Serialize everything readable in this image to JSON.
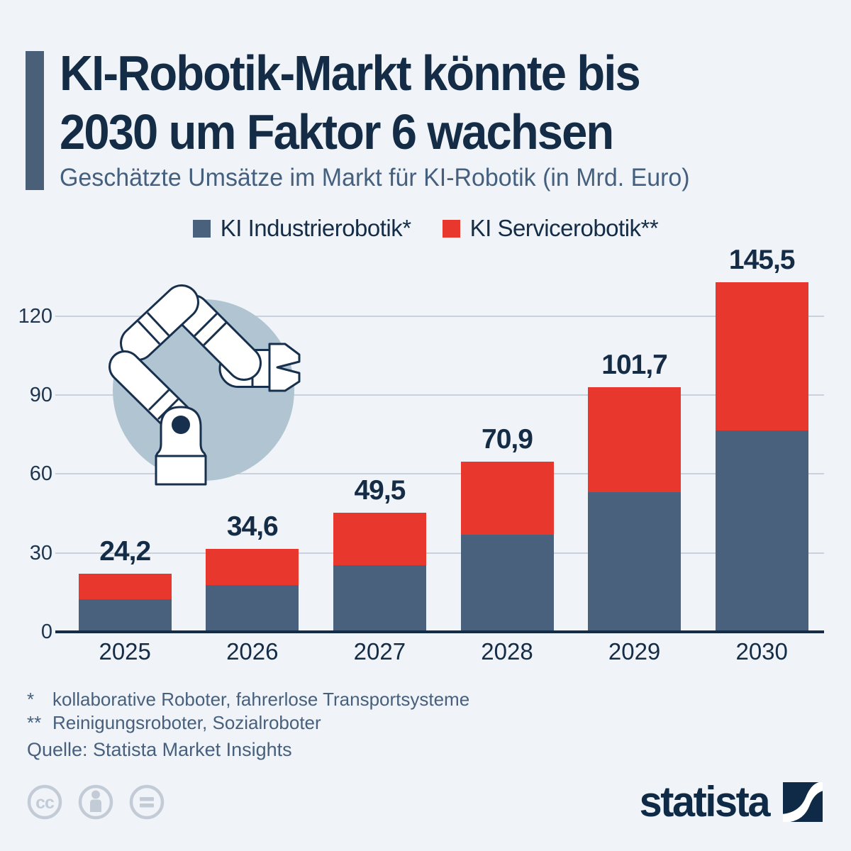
{
  "header": {
    "title_line1": "KI-Robotik-Markt könnte bis",
    "title_line2": "2030 um Faktor 6 wachsen",
    "subtitle": "Geschätzte Umsätze im Markt für KI-Robotik (in Mrd. Euro)"
  },
  "legend": [
    {
      "label": "KI Industrierobotik*",
      "color": "#4a617d"
    },
    {
      "label": "KI Servicerobotik**",
      "color": "#e8372c"
    }
  ],
  "chart_data": {
    "type": "bar",
    "stacked": true,
    "title": "Geschätzte Umsätze im Markt für KI-Robotik (in Mrd. Euro)",
    "unit": "Mrd. Euro",
    "categories": [
      "2025",
      "2026",
      "2027",
      "2028",
      "2029",
      "2030"
    ],
    "series": [
      {
        "name": "KI Industrierobotik",
        "color": "#4a617d",
        "values": [
          13.5,
          19.4,
          27.8,
          40.3,
          58.2,
          83.7
        ]
      },
      {
        "name": "KI Servicerobotik",
        "color": "#e8372c",
        "values": [
          10.7,
          15.2,
          21.7,
          30.6,
          43.5,
          61.8
        ]
      }
    ],
    "totals": [
      24.2,
      34.6,
      49.5,
      70.9,
      101.7,
      145.5
    ],
    "total_labels": [
      "24,2",
      "34,6",
      "49,5",
      "70,9",
      "101,7",
      "145,5"
    ],
    "y_ticks": [
      0,
      30,
      60,
      90,
      120
    ],
    "ylim": [
      0,
      132
    ],
    "grid": true,
    "legend_position": "top"
  },
  "footnotes": [
    {
      "marker": "*",
      "text": "kollaborative Roboter, fahrerlose Transportsysteme"
    },
    {
      "marker": "**",
      "text": "Reinigungsroboter, Sozialroboter"
    }
  ],
  "source": "Quelle: Statista Market Insights",
  "branding": {
    "logo_text": "statista"
  },
  "license_icons": [
    {
      "name": "cc-icon"
    },
    {
      "name": "attribution-person-icon"
    },
    {
      "name": "equals-icon"
    }
  ],
  "colors": {
    "background": "#f0f4f8",
    "accent_bar": "#4a6078",
    "title_text": "#152c47",
    "subtitle_text": "#44607e",
    "industrial_blue": "#4a617d",
    "service_red": "#e8372c",
    "grid_line": "#c9d2dc",
    "axis_line": "#152c47",
    "robot_circle": "#b0c5d1",
    "robot_outline": "#17304e",
    "icon_gray": "#c3ccd6",
    "logo_navy": "#0e2a46"
  }
}
